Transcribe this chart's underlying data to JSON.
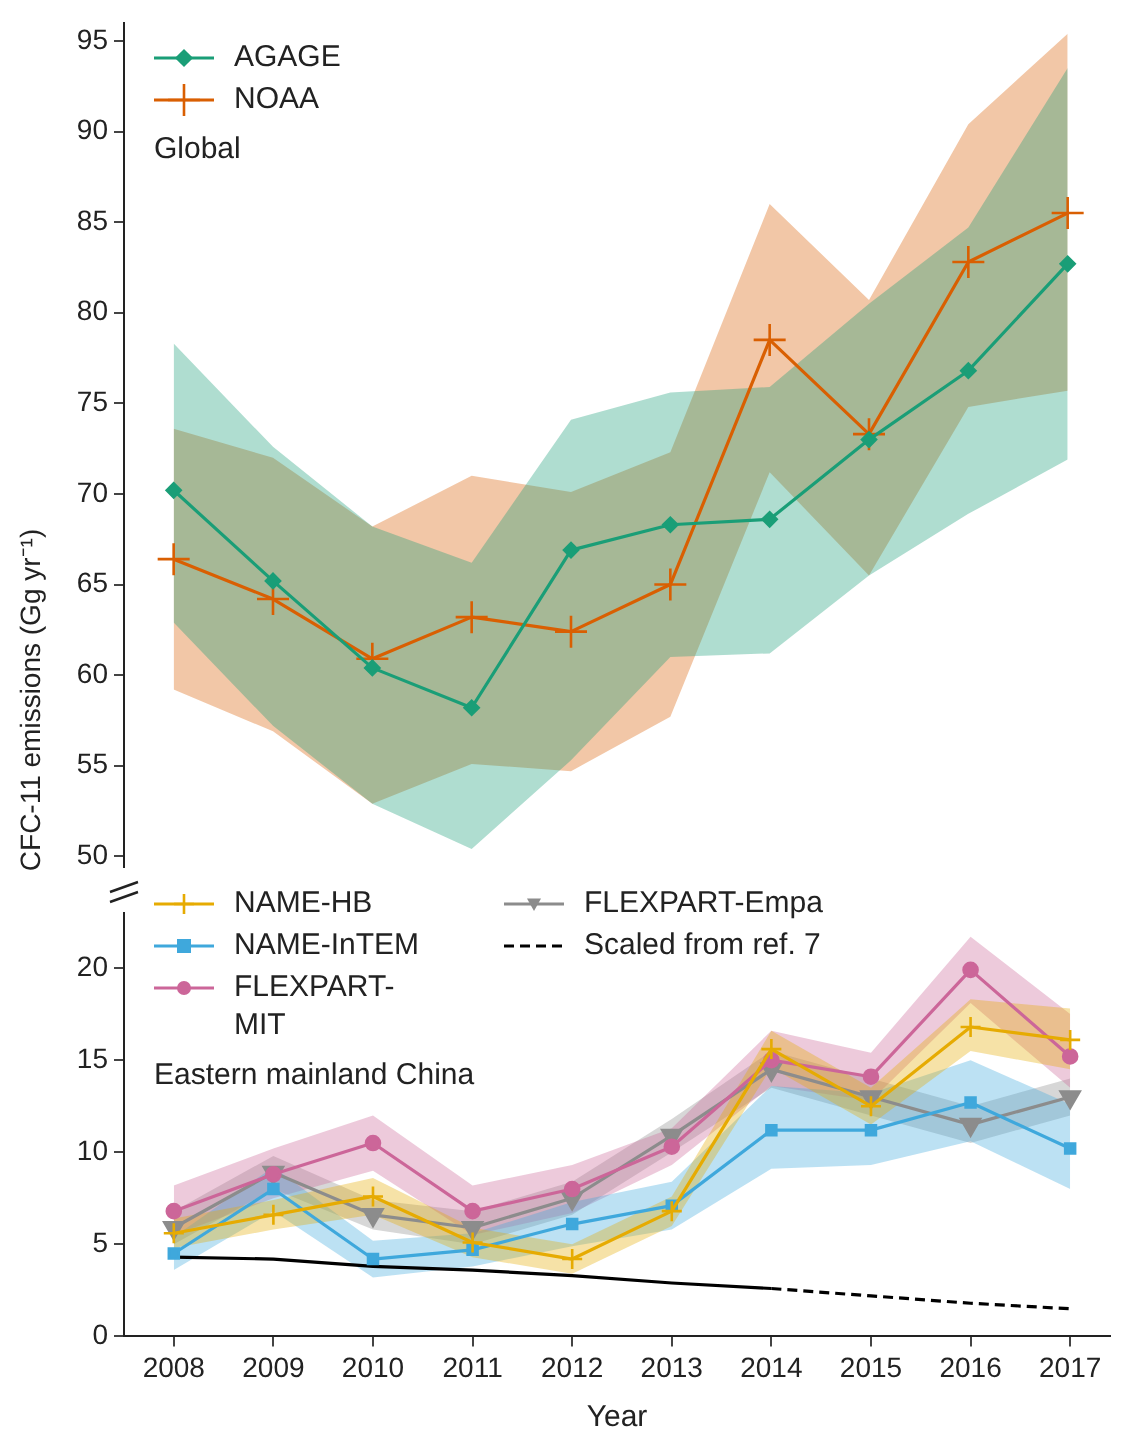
{
  "chart_data": [
    {
      "type": "line",
      "ylabel": "CFC-11 emissions (Gg yr⁻¹)",
      "annotations": [
        "Global"
      ],
      "legend": "top left",
      "tick_labels": "y",
      "x": [
        2008,
        2009,
        2010,
        2011,
        2012,
        2013,
        2014,
        2015,
        2016,
        2017
      ],
      "ylim": [
        49.4,
        96
      ],
      "yticks": [
        50,
        55,
        60,
        65,
        70,
        75,
        80,
        85,
        90,
        95
      ],
      "series": [
        {
          "name": "AGAGE",
          "color": "#1a9e77",
          "marker": "diamond",
          "values": [
            70.2,
            65.2,
            60.4,
            58.2,
            66.9,
            68.3,
            68.6,
            73.0,
            76.8,
            82.7
          ],
          "lower": [
            62.9,
            57.2,
            52.9,
            50.4,
            55.3,
            61.0,
            61.2,
            65.5,
            68.9,
            71.9
          ],
          "upper": [
            78.3,
            72.6,
            68.2,
            66.2,
            74.1,
            75.6,
            75.9,
            80.5,
            84.7,
            93.5
          ]
        },
        {
          "name": "NOAA",
          "color": "#d95f02",
          "marker": "cross",
          "values": [
            66.4,
            64.2,
            60.9,
            63.2,
            62.4,
            65.0,
            78.5,
            73.3,
            82.8,
            85.5
          ],
          "lower": [
            59.2,
            56.9,
            52.9,
            55.1,
            54.7,
            57.7,
            71.2,
            65.5,
            74.8,
            75.7
          ],
          "upper": [
            73.6,
            72.0,
            68.2,
            71.0,
            70.1,
            72.3,
            86.0,
            80.7,
            90.4,
            95.4
          ]
        }
      ]
    },
    {
      "type": "line",
      "xlabel": "Year",
      "annotations": [
        "Eastern mainland China"
      ],
      "legend": "top left",
      "x": [
        2008,
        2009,
        2010,
        2011,
        2012,
        2013,
        2014,
        2015,
        2016,
        2017
      ],
      "xlim": [
        2007.5,
        2017.4
      ],
      "xticks": [
        2008,
        2009,
        2010,
        2011,
        2012,
        2013,
        2014,
        2015,
        2016,
        2017
      ],
      "ylim": [
        0,
        23
      ],
      "yticks": [
        0,
        5,
        10,
        15,
        20
      ],
      "series": [
        {
          "name": "NAME-HB",
          "color": "#e6ab02",
          "marker": "cross",
          "values": [
            5.6,
            6.6,
            7.6,
            5.1,
            4.2,
            6.8,
            15.6,
            12.5,
            16.8,
            16.1
          ],
          "lower": [
            4.8,
            5.8,
            6.6,
            4.3,
            3.4,
            6.0,
            14.6,
            11.5,
            15.5,
            14.5
          ],
          "upper": [
            6.4,
            7.4,
            8.6,
            5.9,
            5.0,
            7.6,
            16.6,
            13.5,
            18.3,
            17.8
          ]
        },
        {
          "name": "NAME-InTEM",
          "color": "#3fa8dc",
          "marker": "square",
          "values": [
            4.5,
            8.0,
            4.2,
            4.7,
            6.1,
            7.1,
            11.2,
            11.2,
            12.7,
            10.2
          ],
          "lower": [
            3.6,
            6.8,
            3.2,
            3.8,
            4.9,
            5.8,
            9.1,
            9.3,
            10.6,
            8.0
          ],
          "upper": [
            5.4,
            9.2,
            5.2,
            5.6,
            7.3,
            8.4,
            13.6,
            13.2,
            15.0,
            12.6
          ]
        },
        {
          "name": "FLEXPART-MIT",
          "color": "#cc6699",
          "marker": "circle",
          "values": [
            6.8,
            8.8,
            10.5,
            6.8,
            8.0,
            10.3,
            15.0,
            14.1,
            19.9,
            15.2
          ],
          "lower": [
            5.5,
            7.5,
            9.0,
            5.5,
            6.7,
            9.3,
            13.6,
            12.8,
            18.1,
            13.5
          ],
          "upper": [
            8.2,
            10.2,
            12.0,
            8.2,
            9.3,
            11.3,
            16.6,
            15.4,
            21.7,
            17.5
          ]
        },
        {
          "name": "FLEXPART-Empa",
          "color": "#8c8c8c",
          "marker": "triangle",
          "values": [
            5.9,
            8.9,
            6.6,
            5.9,
            7.5,
            10.9,
            14.5,
            13.0,
            11.5,
            13.0
          ],
          "lower": [
            5.0,
            8.0,
            5.8,
            5.0,
            6.6,
            10.0,
            13.5,
            12.0,
            10.5,
            12.0
          ],
          "upper": [
            6.8,
            9.8,
            7.4,
            6.8,
            8.4,
            11.8,
            15.5,
            14.0,
            12.5,
            14.0
          ]
        },
        {
          "color": "#000000",
          "marker": "none",
          "line_style": "solid",
          "values": [
            4.3,
            4.2,
            3.8,
            3.6,
            3.3,
            2.9,
            2.6,
            null,
            null,
            null
          ]
        },
        {
          "name": "Scaled from ref. 7",
          "color": "#000000",
          "marker": "none",
          "line_style": "dashed",
          "values": [
            null,
            null,
            null,
            null,
            null,
            null,
            2.6,
            2.2,
            1.8,
            1.5
          ]
        }
      ]
    }
  ]
}
